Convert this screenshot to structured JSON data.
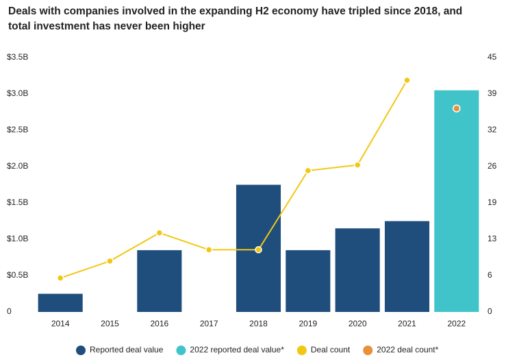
{
  "chart_data": {
    "type": "bar",
    "title": "Deals with companies involved in the expanding H2 economy have tripled since 2018, and total investment has never been higher",
    "categories": [
      "2014",
      "2015",
      "2016",
      "2017",
      "2018",
      "2019",
      "2020",
      "2021",
      "2022"
    ],
    "series": [
      {
        "name": "Reported deal value",
        "type": "bar",
        "color": "#1f4e7d",
        "values": [
          0.25,
          null,
          0.85,
          null,
          1.75,
          0.85,
          1.15,
          1.25,
          null
        ]
      },
      {
        "name": "2022 reported deal value*",
        "type": "bar",
        "color": "#40c4c9",
        "values": [
          null,
          null,
          null,
          null,
          null,
          null,
          null,
          null,
          3.05
        ]
      },
      {
        "name": "Deal count",
        "type": "line",
        "axis": "y2",
        "color": "#f2c714",
        "values": [
          6,
          9,
          14,
          11,
          11,
          25,
          26,
          41,
          null
        ]
      },
      {
        "name": "2022 deal count*",
        "type": "scatter",
        "axis": "y2",
        "color": "#e8913a",
        "values": [
          null,
          null,
          null,
          null,
          null,
          null,
          null,
          null,
          36
        ]
      }
    ],
    "ylim": [
      0,
      3.5
    ],
    "yticks": [
      0,
      {
        "value": 0.5,
        "label": "$0.5B"
      },
      {
        "value": 1.0,
        "label": "$1.0B"
      },
      {
        "value": 1.5,
        "label": "$1.5B"
      },
      {
        "value": 2.0,
        "label": "$2.0B"
      },
      {
        "value": 2.5,
        "label": "$2.5B"
      },
      {
        "value": 3.0,
        "label": "$3.0B"
      },
      {
        "value": 3.5,
        "label": "$3.5B"
      }
    ],
    "y2lim": [
      0,
      45
    ],
    "y2ticks": [
      0,
      {
        "value": 6.43,
        "label": "6"
      },
      {
        "value": 12.86,
        "label": "13"
      },
      {
        "value": 19.29,
        "label": "19"
      },
      {
        "value": 25.71,
        "label": "26"
      },
      {
        "value": 32.14,
        "label": "32"
      },
      {
        "value": 38.57,
        "label": "39"
      },
      45
    ],
    "grid": false,
    "legend": "bottom"
  }
}
